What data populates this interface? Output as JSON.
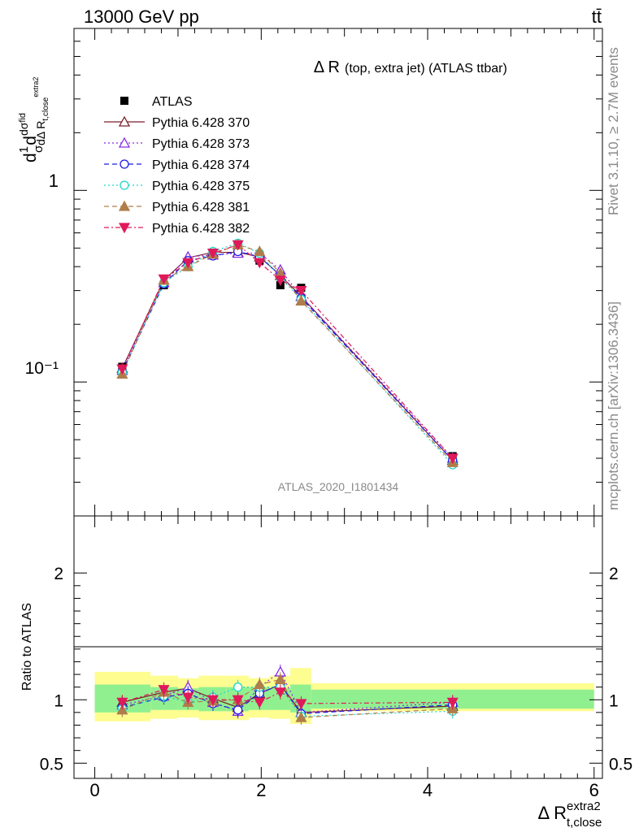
{
  "header": {
    "left": "13000 GeV pp",
    "right": "tt̄"
  },
  "side_labels": {
    "rivet": "Rivet 3.1.10, ≥ 2.7M events",
    "mcplots": "mcplots.cern.ch [arXiv:1306.3436]"
  },
  "chart_data": [
    {
      "type": "line",
      "title_main": "Δ R",
      "title_sub": "(top, extra jet) (ATLAS ttbar)",
      "watermark": "ATLAS_2020_I1801434",
      "ylabel": "dσ/dΔ R / σ (normalized)",
      "yscale": "log",
      "ylim": [
        0.02,
        7.0
      ],
      "xlim": [
        -0.25,
        6.1
      ],
      "y_tick_labels": [
        "10⁻¹",
        "1"
      ],
      "x": [
        0.33,
        0.83,
        1.12,
        1.42,
        1.72,
        1.98,
        2.23,
        2.48,
        4.3
      ],
      "x_edges": [
        0.0,
        0.67,
        1.0,
        1.25,
        1.58,
        1.85,
        2.1,
        2.35,
        2.6,
        6.0
      ],
      "series": [
        {
          "name": "ATLAS",
          "color": "#000000",
          "marker": "square",
          "values": [
            0.12,
            0.32,
            0.41,
            0.47,
            0.52,
            0.43,
            0.32,
            0.31,
            0.041
          ]
        },
        {
          "name": "Pythia 6.428 370",
          "color": "#7a1e2a",
          "marker": "triangle-open",
          "dash": "",
          "values": [
            0.118,
            0.34,
            0.445,
            0.475,
            0.475,
            0.45,
            0.36,
            0.28,
            0.039
          ]
        },
        {
          "name": "Pythia 6.428 373",
          "color": "#8a2be2",
          "marker": "triangle-open",
          "dash": "2,3",
          "values": [
            0.115,
            0.33,
            0.45,
            0.46,
            0.47,
            0.47,
            0.385,
            0.28,
            0.04
          ]
        },
        {
          "name": "Pythia 6.428 374",
          "color": "#1a1ae6",
          "marker": "circle-open",
          "dash": "6,4",
          "values": [
            0.113,
            0.325,
            0.43,
            0.455,
            0.48,
            0.45,
            0.36,
            0.275,
            0.039
          ]
        },
        {
          "name": "Pythia 6.428 375",
          "color": "#1fd6c8",
          "marker": "circle-open",
          "dash": "2,3",
          "values": [
            0.112,
            0.33,
            0.4,
            0.48,
            0.53,
            0.47,
            0.35,
            0.27,
            0.037
          ]
        },
        {
          "name": "Pythia 6.428 381",
          "color": "#b07d4a",
          "marker": "triangle",
          "dash": "6,4",
          "values": [
            0.11,
            0.34,
            0.4,
            0.465,
            0.52,
            0.48,
            0.37,
            0.265,
            0.038
          ]
        },
        {
          "name": "Pythia 6.428 382",
          "color": "#e0195a",
          "marker": "triangle-down",
          "dash": "6,3,2,3",
          "values": [
            0.117,
            0.345,
            0.42,
            0.47,
            0.52,
            0.42,
            0.34,
            0.3,
            0.04
          ]
        }
      ]
    },
    {
      "type": "line",
      "ylabel": "Ratio to ATLAS",
      "xlabel": "Δ R",
      "xlabel_sup": "extra2",
      "xlabel_sub": "t,close",
      "ylim": [
        0.38,
        2.45
      ],
      "xlim": [
        -0.25,
        6.1
      ],
      "x_ticks": [
        0,
        2,
        4,
        6
      ],
      "y_ticks": [
        0.5,
        1,
        2
      ],
      "x": [
        0.33,
        0.83,
        1.12,
        1.42,
        1.72,
        1.98,
        2.23,
        2.48,
        4.3
      ],
      "bands": {
        "x_edges": [
          0.0,
          0.67,
          1.0,
          1.25,
          1.58,
          1.85,
          2.1,
          2.35,
          2.6,
          6.0
        ],
        "inner": [
          [
            0.9,
            1.12
          ],
          [
            0.92,
            1.1
          ],
          [
            0.92,
            1.09
          ],
          [
            0.91,
            1.1
          ],
          [
            0.91,
            1.1
          ],
          [
            0.92,
            1.1
          ],
          [
            0.92,
            1.09
          ],
          [
            0.9,
            1.12
          ],
          [
            0.93,
            1.08
          ]
        ],
        "outer": [
          [
            0.83,
            1.22
          ],
          [
            0.85,
            1.19
          ],
          [
            0.86,
            1.17
          ],
          [
            0.84,
            1.19
          ],
          [
            0.84,
            1.19
          ],
          [
            0.86,
            1.17
          ],
          [
            0.85,
            1.19
          ],
          [
            0.81,
            1.25
          ],
          [
            0.91,
            1.13
          ]
        ],
        "inner_color": "#90f090",
        "outer_color": "#fdfd90"
      },
      "series": [
        {
          "name": "Pythia 6.428 370",
          "values": [
            0.98,
            1.06,
            1.09,
            1.01,
            0.94,
            1.05,
            1.12,
            0.9,
            0.95
          ]
        },
        {
          "name": "Pythia 6.428 373",
          "values": [
            0.96,
            1.03,
            1.1,
            0.98,
            0.91,
            1.1,
            1.22,
            0.9,
            0.98
          ]
        },
        {
          "name": "Pythia 6.428 374",
          "values": [
            0.94,
            1.02,
            1.05,
            0.97,
            0.92,
            1.05,
            1.12,
            0.89,
            0.96
          ]
        },
        {
          "name": "Pythia 6.428 375",
          "values": [
            0.93,
            1.03,
            0.98,
            1.02,
            1.1,
            1.1,
            1.1,
            0.87,
            0.91
          ]
        },
        {
          "name": "Pythia 6.428 381",
          "values": [
            0.92,
            1.06,
            0.98,
            0.99,
            1.0,
            1.12,
            1.16,
            0.86,
            0.93
          ]
        },
        {
          "name": "Pythia 6.428 382",
          "values": [
            0.98,
            1.08,
            1.02,
            1.0,
            1.0,
            0.98,
            1.06,
            0.97,
            0.98
          ]
        }
      ]
    }
  ]
}
